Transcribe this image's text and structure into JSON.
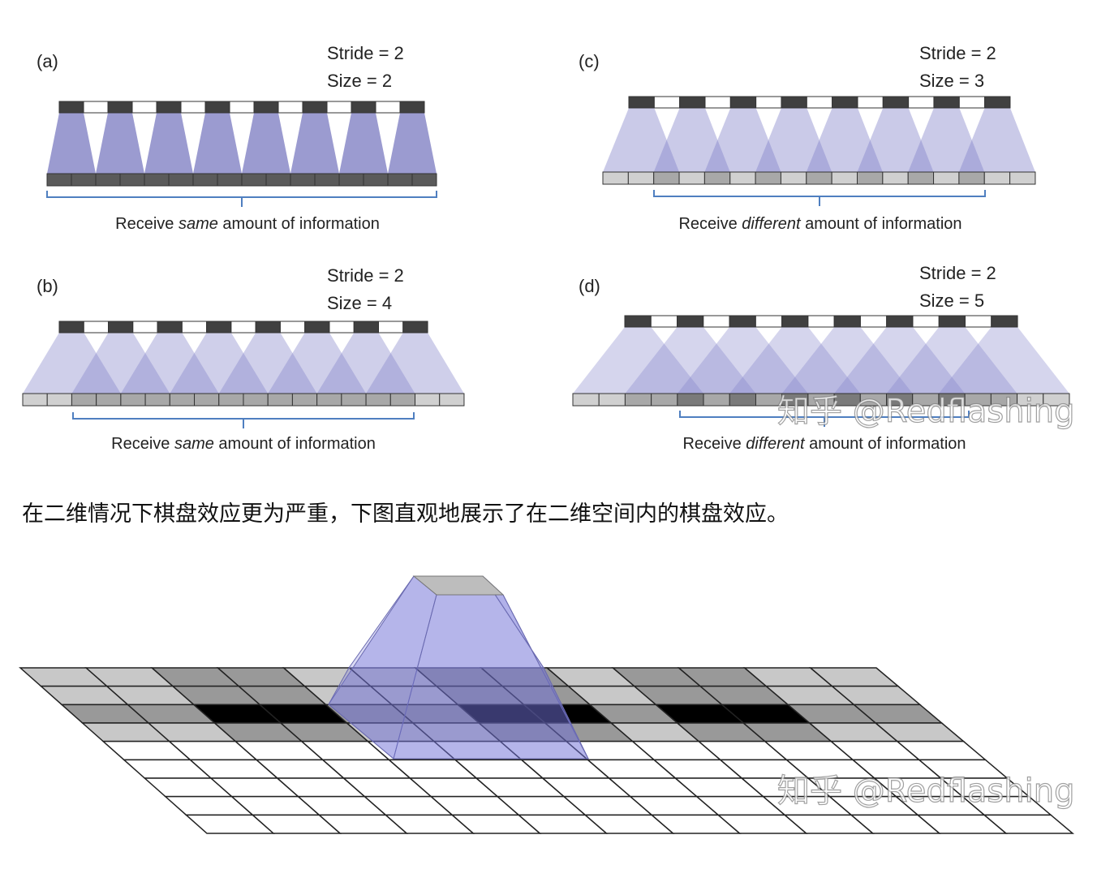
{
  "panels": [
    {
      "label": "(a)",
      "stride": "Stride = 2",
      "size": "Size = 2",
      "caption": {
        "before": "Receive ",
        "emphasis": "same",
        "after": " amount of information"
      }
    },
    {
      "label": "(b)",
      "stride": "Stride = 2",
      "size": "Size = 4",
      "caption": {
        "before": "Receive ",
        "emphasis": "same",
        "after": " amount of information"
      }
    },
    {
      "label": "(c)",
      "stride": "Stride = 2",
      "size": "Size = 3",
      "caption": {
        "before": "Receive ",
        "emphasis": "different",
        "after": " amount of information"
      }
    },
    {
      "label": "(d)",
      "stride": "Stride = 2",
      "size": "Size = 5",
      "caption": {
        "before": "Receive ",
        "emphasis": "different",
        "after": " amount of information"
      }
    }
  ],
  "paragraph": "在二维情况下棋盘效应更为严重，下图直观地展示了在二维空间内的棋盘效应。",
  "watermarks": [
    "知乎 @Redflashing",
    "知乎 @Redflashing"
  ]
}
